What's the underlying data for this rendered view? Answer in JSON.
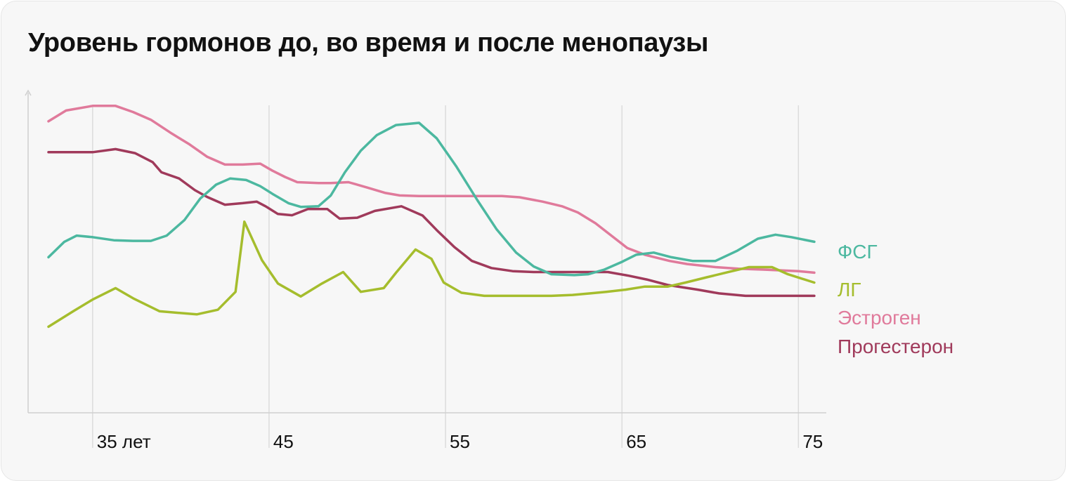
{
  "chart_data": {
    "type": "line",
    "title": "Уровень гормонов до, во время и после менопаузы",
    "xlabel": "",
    "ylabel": "",
    "xlim": [
      32.5,
      76.5
    ],
    "ylim": [
      0,
      100
    ],
    "x_ticks": [
      {
        "value": 35,
        "label": "35 лет"
      },
      {
        "value": 45,
        "label": "45"
      },
      {
        "value": 55,
        "label": "55"
      },
      {
        "value": 65,
        "label": "65"
      },
      {
        "value": 75,
        "label": "75"
      }
    ],
    "grid": "vertical at ticks",
    "legend": "right, next to line ends",
    "series": [
      {
        "name": "ФСГ",
        "color": "#4cb8a0",
        "points": [
          [
            32.5,
            44
          ],
          [
            33.4,
            49
          ],
          [
            34.1,
            51
          ],
          [
            35,
            50.5
          ],
          [
            36.2,
            49.5
          ],
          [
            37.3,
            49.3
          ],
          [
            38.3,
            49.3
          ],
          [
            39.2,
            51
          ],
          [
            40.2,
            56
          ],
          [
            41.1,
            63
          ],
          [
            42,
            67.5
          ],
          [
            42.8,
            69.5
          ],
          [
            43.7,
            69
          ],
          [
            44.5,
            67
          ],
          [
            45.2,
            64.5
          ],
          [
            46.1,
            61.5
          ],
          [
            46.8,
            60.3
          ],
          [
            47.8,
            60.5
          ],
          [
            48.5,
            64
          ],
          [
            49.3,
            71.5
          ],
          [
            50.2,
            78.5
          ],
          [
            51.1,
            83.5
          ],
          [
            52.2,
            86.8
          ],
          [
            53.5,
            87.5
          ],
          [
            54.5,
            82.5
          ],
          [
            55.6,
            73.5
          ],
          [
            56.8,
            62.5
          ],
          [
            57.9,
            53
          ],
          [
            59,
            45.5
          ],
          [
            60,
            41
          ],
          [
            61,
            38.5
          ],
          [
            62.3,
            38.2
          ],
          [
            63.1,
            38.5
          ],
          [
            64,
            40
          ],
          [
            65,
            42.5
          ],
          [
            65.8,
            44.8
          ],
          [
            66.8,
            45.5
          ],
          [
            67.8,
            44
          ],
          [
            69,
            42.8
          ],
          [
            70.3,
            42.8
          ],
          [
            71.5,
            46
          ],
          [
            72.7,
            50
          ],
          [
            73.7,
            51.3
          ],
          [
            74.6,
            50.5
          ],
          [
            75.9,
            49
          ]
        ]
      },
      {
        "name": "ЛГ",
        "color": "#a5bd2d",
        "points": [
          [
            32.5,
            21.5
          ],
          [
            33.9,
            26.5
          ],
          [
            35,
            30.3
          ],
          [
            36.3,
            34
          ],
          [
            37.3,
            30.7
          ],
          [
            38.8,
            26.5
          ],
          [
            40.9,
            25.5
          ],
          [
            42.1,
            27
          ],
          [
            43.1,
            32.8
          ],
          [
            43.6,
            55.5
          ],
          [
            44.6,
            43
          ],
          [
            45.5,
            35.5
          ],
          [
            46.8,
            31.3
          ],
          [
            48,
            35.5
          ],
          [
            49.2,
            39.2
          ],
          [
            50.2,
            32.8
          ],
          [
            51.5,
            34
          ],
          [
            52.2,
            39
          ],
          [
            53.3,
            46.5
          ],
          [
            54.2,
            43.5
          ],
          [
            54.9,
            35.8
          ],
          [
            55.9,
            32.5
          ],
          [
            57.2,
            31.5
          ],
          [
            58.6,
            31.5
          ],
          [
            59.7,
            31.5
          ],
          [
            61,
            31.5
          ],
          [
            62.2,
            31.8
          ],
          [
            63.2,
            32.3
          ],
          [
            64.1,
            32.8
          ],
          [
            65.2,
            33.5
          ],
          [
            66.3,
            34.5
          ],
          [
            67.6,
            34.5
          ],
          [
            68.6,
            35.8
          ],
          [
            69.8,
            37.5
          ],
          [
            71.1,
            39.3
          ],
          [
            72.2,
            40.8
          ],
          [
            73.5,
            40.8
          ],
          [
            74.4,
            38.5
          ],
          [
            75.9,
            35.8
          ]
        ]
      },
      {
        "name": "Эстроген",
        "color": "#e07a9b",
        "points": [
          [
            32.5,
            88
          ],
          [
            33.5,
            91.5
          ],
          [
            35,
            93
          ],
          [
            36.3,
            93
          ],
          [
            37.3,
            91
          ],
          [
            38.3,
            88.5
          ],
          [
            39.5,
            84
          ],
          [
            40.5,
            80.5
          ],
          [
            41.5,
            76.5
          ],
          [
            42.5,
            74
          ],
          [
            43.5,
            74
          ],
          [
            44.5,
            74.3
          ],
          [
            45.2,
            72
          ],
          [
            45.9,
            70
          ],
          [
            46.6,
            68.3
          ],
          [
            47.8,
            68
          ],
          [
            48.5,
            68
          ],
          [
            49.5,
            68.3
          ],
          [
            50.6,
            66.5
          ],
          [
            51.6,
            64.8
          ],
          [
            52.4,
            64
          ],
          [
            53.5,
            63.8
          ],
          [
            55,
            63.8
          ],
          [
            56.2,
            63.8
          ],
          [
            57.4,
            63.8
          ],
          [
            58.2,
            63.8
          ],
          [
            59.2,
            63.4
          ],
          [
            60.5,
            62
          ],
          [
            61.6,
            60.5
          ],
          [
            62.5,
            58.5
          ],
          [
            63.5,
            55
          ],
          [
            64.4,
            51
          ],
          [
            65.3,
            47
          ],
          [
            66.3,
            44.8
          ],
          [
            67.7,
            42.8
          ],
          [
            68.7,
            41.8
          ],
          [
            70.3,
            40.8
          ],
          [
            71.6,
            40.3
          ],
          [
            73,
            40
          ],
          [
            75,
            39.5
          ],
          [
            75.9,
            39
          ]
        ]
      },
      {
        "name": "Прогестерон",
        "color": "#a03a5b",
        "points": [
          [
            32.5,
            78
          ],
          [
            35,
            78
          ],
          [
            36.3,
            79
          ],
          [
            37.4,
            77.7
          ],
          [
            38.4,
            74.8
          ],
          [
            38.9,
            71.5
          ],
          [
            39.9,
            69.5
          ],
          [
            40.8,
            65.7
          ],
          [
            41.5,
            63.5
          ],
          [
            42.5,
            61
          ],
          [
            43.5,
            61.5
          ],
          [
            44.3,
            62
          ],
          [
            44.8,
            60.5
          ],
          [
            45.5,
            58
          ],
          [
            46.3,
            57.6
          ],
          [
            47.2,
            59.6
          ],
          [
            48.3,
            59.6
          ],
          [
            49,
            56.5
          ],
          [
            50,
            56.8
          ],
          [
            51,
            59
          ],
          [
            52.5,
            60.5
          ],
          [
            53.7,
            57.5
          ],
          [
            54.5,
            52.8
          ],
          [
            55.5,
            47.3
          ],
          [
            56.5,
            42.8
          ],
          [
            57.6,
            40.5
          ],
          [
            58.8,
            39.5
          ],
          [
            60,
            39.2
          ],
          [
            61,
            39.2
          ],
          [
            62.3,
            39.2
          ],
          [
            63.3,
            39.2
          ],
          [
            64.2,
            39.2
          ],
          [
            65.4,
            38
          ],
          [
            66.4,
            36.8
          ],
          [
            67.6,
            35
          ],
          [
            69.3,
            33.5
          ],
          [
            70.5,
            32.3
          ],
          [
            72,
            31.5
          ],
          [
            73.8,
            31.5
          ],
          [
            75.9,
            31.5
          ]
        ]
      }
    ]
  }
}
